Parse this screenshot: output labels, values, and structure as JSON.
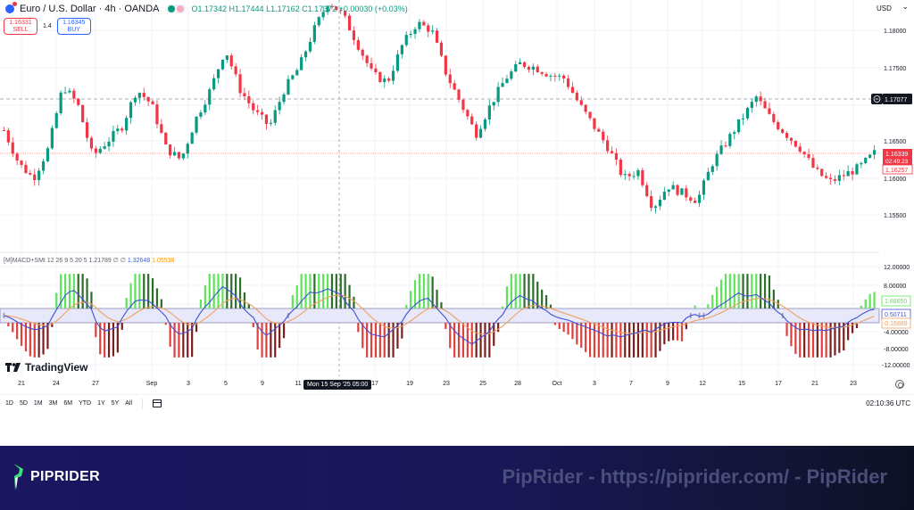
{
  "header": {
    "symbol_title": "Euro / U.S. Dollar · 4h · OANDA",
    "ohlc": "O1.17342 H1.17444 L1.17162 C1.17372 +0.00030 (+0.03%)",
    "currency_selector": "USD"
  },
  "trade": {
    "sell_price": "1.16331",
    "sell_label": "SELL",
    "spread": "1.4",
    "buy_price": "1.16345",
    "buy_label": "BUY"
  },
  "indicator": {
    "label": "[M]MACD+SMI 12 26 9 5 20 5  1.21789  ∅  ∅",
    "value_blue": "1.32648",
    "value_orange": "1.05538",
    "axis_labels": [
      "12.00000",
      "8.00000",
      "-4.00000",
      "-8.00000",
      "-12.00000"
    ],
    "tag_green": "1.88650",
    "tag_blue": "0.50711",
    "tag_orange": "-0.16889"
  },
  "price_axis": {
    "labels": [
      "1.18000",
      "1.17500",
      "1.17000",
      "1.16500",
      "1.16000",
      "1.15500"
    ],
    "crosshair_price": "1.17077",
    "current_price": "1.16339",
    "countdown": "02:49:23",
    "bid_price": "1.16257"
  },
  "time_axis": {
    "labels": [
      "21",
      "24",
      "27",
      "Sep",
      "3",
      "5",
      "9",
      "11",
      "17",
      "19",
      "23",
      "25",
      "28",
      "Oct",
      "3",
      "7",
      "9",
      "12",
      "15",
      "17",
      "21",
      "23"
    ],
    "crosshair_time": "Mon 15 Sep '25   05:00"
  },
  "range_bar": {
    "ranges": [
      "1D",
      "5D",
      "1M",
      "3M",
      "6M",
      "YTD",
      "1Y",
      "5Y",
      "All"
    ],
    "clock": "02:10:36 UTC"
  },
  "branding": {
    "tradingview": "TradingView",
    "footer_logo": "PIPRIDER",
    "footer_watermark": "PipRider - https://piprider.com/ - PipRider"
  },
  "colors": {
    "up": "#089981",
    "down": "#f23645",
    "hist_up": "#5fe35a",
    "hist_up_dark": "#2d6e2a",
    "hist_down": "#e0403c",
    "hist_down_dark": "#7a1f1d",
    "macd_line": "#3f51d6",
    "signal_line": "#f0a060",
    "footer_bg": "#1a1660"
  },
  "chart_data": {
    "type": "candlestick",
    "title": "Euro / U.S. Dollar · 4h · OANDA",
    "ylabel": "USD",
    "ylim": [
      1.1525,
      1.184
    ],
    "x_ticks": [
      "21",
      "24",
      "27",
      "Sep",
      "3",
      "5",
      "9",
      "11",
      "15",
      "17",
      "19",
      "23",
      "25",
      "28",
      "Oct",
      "3",
      "7",
      "9",
      "12",
      "15",
      "17",
      "21",
      "23"
    ],
    "approx_close_path": [
      1.1665,
      1.162,
      1.16,
      1.164,
      1.1725,
      1.17,
      1.163,
      1.165,
      1.167,
      1.172,
      1.17,
      1.164,
      1.1625,
      1.168,
      1.172,
      1.1775,
      1.172,
      1.169,
      1.167,
      1.172,
      1.175,
      1.18,
      1.184,
      1.182,
      1.178,
      1.174,
      1.173,
      1.178,
      1.181,
      1.18,
      1.174,
      1.17,
      1.166,
      1.17,
      1.1735,
      1.1755,
      1.175,
      1.174,
      1.1735,
      1.17,
      1.167,
      1.164,
      1.16,
      1.161,
      1.156,
      1.159,
      1.158,
      1.157,
      1.162,
      1.165,
      1.168,
      1.171,
      1.168,
      1.166,
      1.164,
      1.161,
      1.1595,
      1.1605,
      1.1615,
      1.1634
    ],
    "current_price": 1.16339,
    "crosshair": {
      "price": 1.17077,
      "time": "Mon 15 Sep '25 05:00"
    },
    "indicator": {
      "name": "MACD+SMI",
      "ylim": [
        -13,
        13
      ],
      "ticks": [
        12,
        8,
        -4,
        -8,
        -12
      ],
      "last_values": {
        "histogram": 1.8865,
        "macd": 0.50711,
        "signal": -0.16889
      }
    }
  }
}
